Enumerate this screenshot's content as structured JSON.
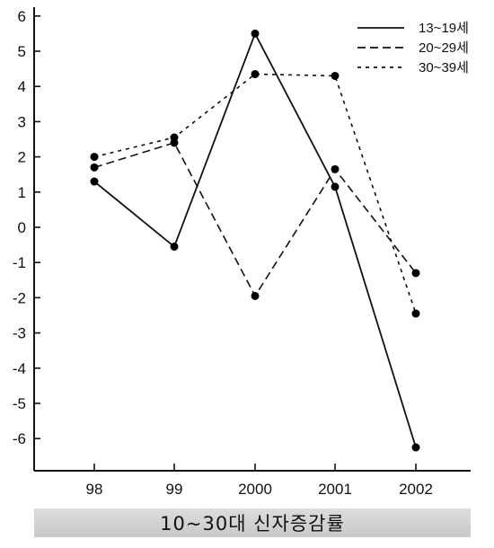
{
  "chart_data": {
    "type": "line",
    "title": "10~30대 신자증감률",
    "categories": [
      "98",
      "99",
      "2000",
      "2001",
      "2002"
    ],
    "ylim": [
      -7,
      6.5
    ],
    "yticks": [
      6,
      5,
      4,
      3,
      2,
      1,
      0,
      -1,
      -2,
      -3,
      -4,
      -5,
      -6
    ],
    "ytick_labels": [
      "6",
      "5",
      "4",
      "3",
      "2",
      "1",
      "0",
      "-1",
      "-2",
      "-3",
      "-4",
      "-5",
      "-6"
    ],
    "grid": false,
    "legend_position": "top-right",
    "series": [
      {
        "name": "13~19세",
        "style": "solid",
        "values": [
          1.3,
          -0.55,
          5.5,
          1.15,
          -6.25
        ]
      },
      {
        "name": "20~29세",
        "style": "long-dash",
        "values": [
          1.7,
          2.4,
          -1.95,
          1.65,
          -1.3
        ]
      },
      {
        "name": "30~39세",
        "style": "short-dash",
        "values": [
          2.0,
          2.55,
          4.35,
          4.3,
          -2.45
        ]
      }
    ],
    "colors": {
      "line": "#111111",
      "marker": "#000000",
      "title_bg": "#d2d2d2"
    }
  }
}
